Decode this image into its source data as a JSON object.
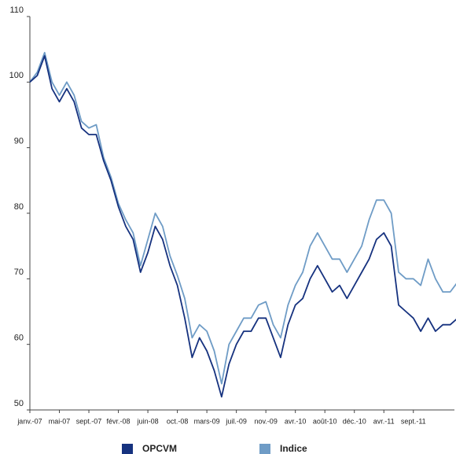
{
  "chart_data": {
    "type": "line",
    "categories": [
      "janv.-07",
      null,
      null,
      null,
      "mai-07",
      null,
      null,
      null,
      "sept.-07",
      null,
      null,
      null,
      "févr.-08",
      null,
      null,
      null,
      "juin-08",
      null,
      null,
      null,
      "oct.-08",
      null,
      null,
      null,
      "mars-09",
      null,
      null,
      null,
      "juil.-09",
      null,
      null,
      null,
      "nov.-09",
      null,
      null,
      null,
      "avr.-10",
      null,
      null,
      null,
      "août-10",
      null,
      null,
      null,
      "déc.-10",
      null,
      null,
      null,
      "avr.-11",
      null,
      null,
      null,
      "sept.-11",
      null,
      null,
      null,
      null,
      null,
      null
    ],
    "series": [
      {
        "name": "Indice",
        "color": "#6f9cc6",
        "values": [
          100,
          101.5,
          104.5,
          100,
          98,
          100,
          98,
          94,
          93,
          93.5,
          88.5,
          85.5,
          81.5,
          79,
          77,
          72,
          76,
          80,
          78,
          73.5,
          70.5,
          67,
          61,
          63,
          62,
          59,
          54,
          60,
          62,
          64,
          64,
          66,
          66.5,
          63,
          61,
          66,
          69,
          71,
          75,
          77,
          75,
          73,
          73,
          71,
          73,
          75,
          79,
          82,
          82,
          80,
          71,
          70,
          70,
          69,
          73,
          70,
          68,
          68,
          69.5
        ]
      },
      {
        "name": "OPCVM",
        "color": "#16327f",
        "values": [
          100,
          101,
          104,
          99,
          97,
          99,
          97,
          93,
          92,
          92,
          88,
          85,
          81,
          78,
          76,
          71,
          74,
          78,
          76,
          72,
          69,
          64,
          58,
          61,
          59,
          56,
          52,
          57,
          60,
          62,
          62,
          64,
          64,
          61,
          58,
          63,
          66,
          67,
          70,
          72,
          70,
          68,
          69,
          67,
          69,
          71,
          73,
          76,
          77,
          75,
          66,
          65,
          64,
          62,
          64,
          62,
          63,
          63,
          64
        ]
      }
    ],
    "ylim": [
      50,
      110
    ],
    "yticks": [
      50,
      60,
      70,
      80,
      90,
      100,
      110
    ],
    "legend": "bottom"
  }
}
